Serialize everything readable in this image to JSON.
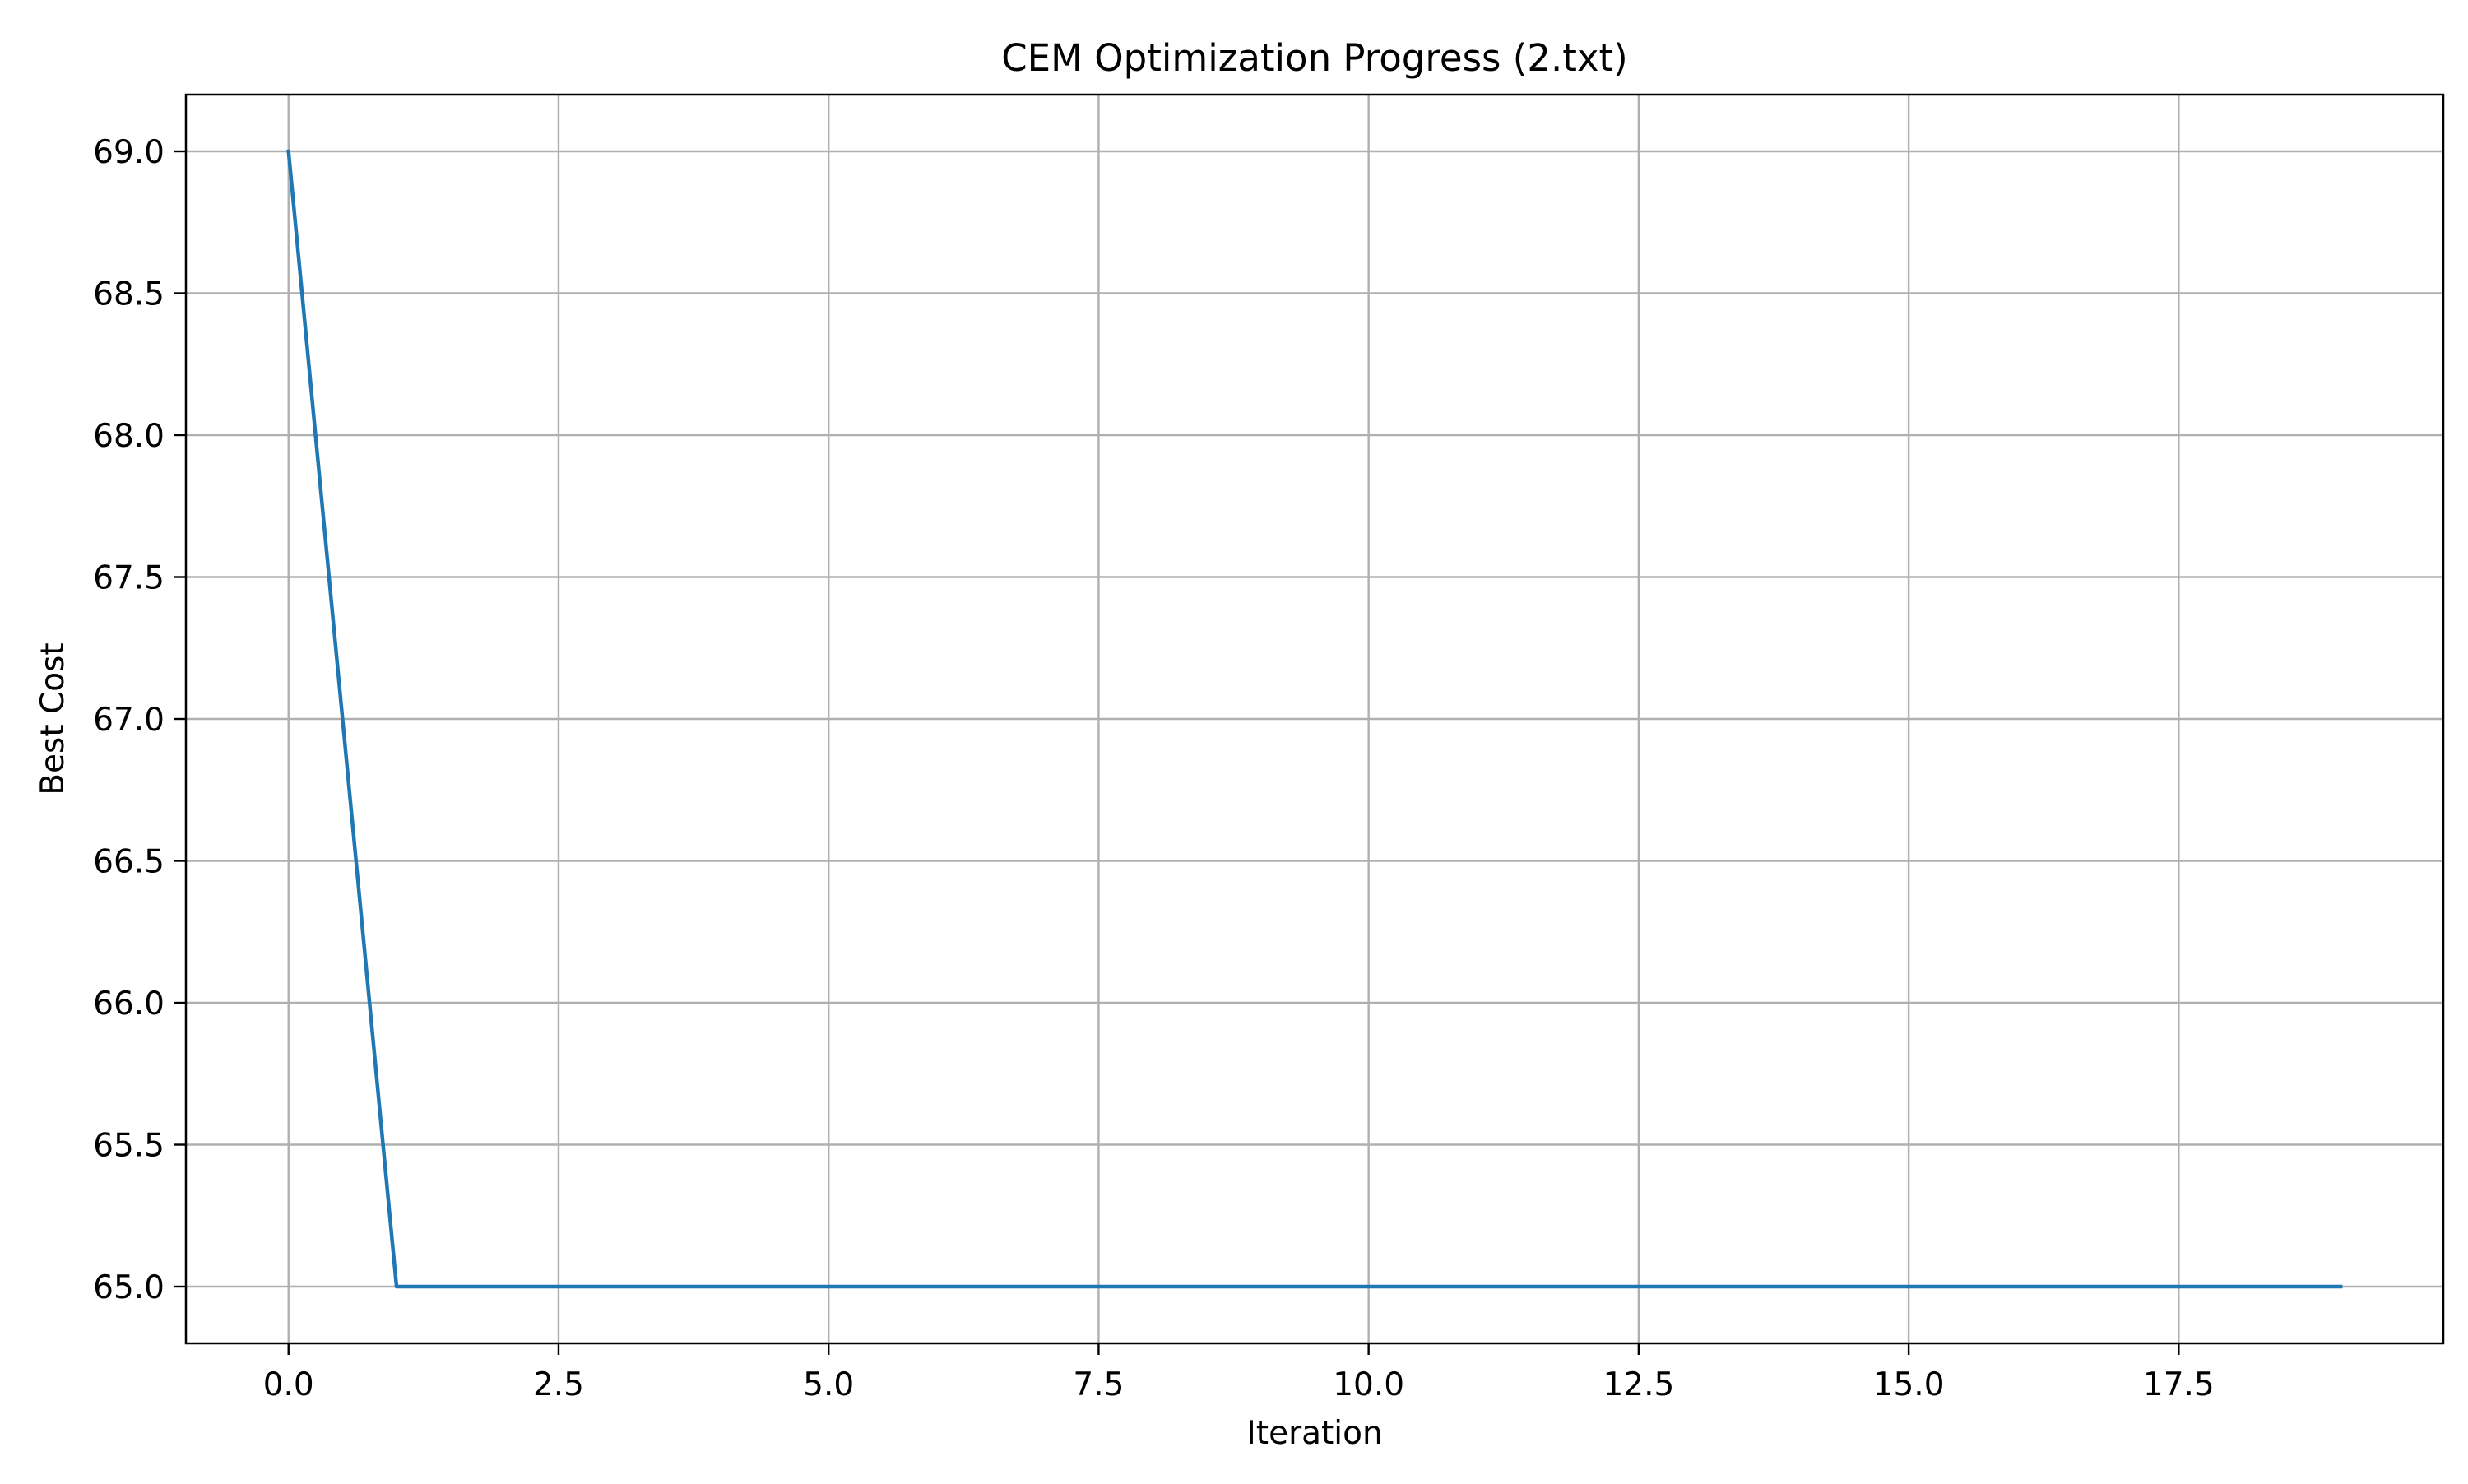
{
  "chart_data": {
    "type": "line",
    "title": "CEM Optimization Progress (2.txt)",
    "xlabel": "Iteration",
    "ylabel": "Best Cost",
    "xlim": [
      -0.95,
      19.95
    ],
    "ylim": [
      64.8,
      69.2
    ],
    "xticks": [
      0.0,
      2.5,
      5.0,
      7.5,
      10.0,
      12.5,
      15.0,
      17.5
    ],
    "xtick_labels": [
      "0.0",
      "2.5",
      "5.0",
      "7.5",
      "10.0",
      "12.5",
      "15.0",
      "17.5"
    ],
    "yticks": [
      65.0,
      65.5,
      66.0,
      66.5,
      67.0,
      67.5,
      68.0,
      68.5,
      69.0
    ],
    "ytick_labels": [
      "65.0",
      "65.5",
      "66.0",
      "66.5",
      "67.0",
      "67.5",
      "68.0",
      "68.5",
      "69.0"
    ],
    "grid": true,
    "series": [
      {
        "color": "#1f77b4",
        "x": [
          0,
          1,
          2,
          3,
          4,
          5,
          6,
          7,
          8,
          9,
          10,
          11,
          12,
          13,
          14,
          15,
          16,
          17,
          18,
          19
        ],
        "y": [
          69,
          65,
          65,
          65,
          65,
          65,
          65,
          65,
          65,
          65,
          65,
          65,
          65,
          65,
          65,
          65,
          65,
          65,
          65,
          65
        ]
      }
    ]
  }
}
